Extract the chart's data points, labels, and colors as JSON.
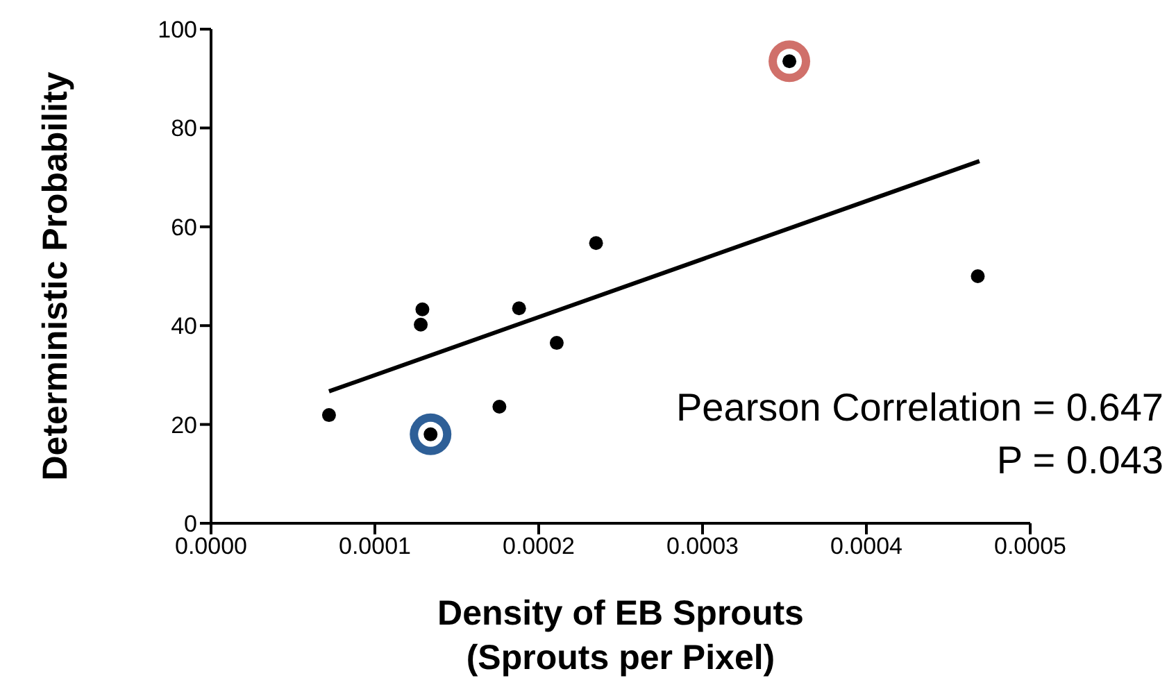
{
  "chart_data": {
    "type": "scatter",
    "xlabel": "Density of EB Sprouts\n(Sprouts per Pixel)",
    "ylabel": "Deterministic Probability",
    "xlim": [
      0,
      0.0005
    ],
    "xticks": [
      {
        "value": 0,
        "label": "0.0000"
      },
      {
        "value": 0.0001,
        "label": "0.0001"
      },
      {
        "value": 0.0002,
        "label": "0.0002"
      },
      {
        "value": 0.0003,
        "label": "0.0003"
      },
      {
        "value": 0.0004,
        "label": "0.0004"
      },
      {
        "value": 0.0005,
        "label": "0.0005"
      }
    ],
    "ylim": [
      0,
      100
    ],
    "yticks": [
      0,
      20,
      40,
      60,
      80,
      100
    ],
    "marker": "circle",
    "series": [
      {
        "color": "#2e5f97",
        "x": [
          0.000134
        ],
        "values": [
          18.0
        ]
      },
      {
        "color": "#d0706a",
        "x": [
          0.000353
        ],
        "values": [
          93.5
        ]
      },
      {
        "color": "#000000",
        "x": [
          7.2e-05,
          0.000129,
          0.000128,
          0.000134,
          0.000176,
          0.000188,
          0.000211,
          0.000235,
          0.000353,
          0.000468
        ],
        "values": [
          21.9,
          43.3,
          40.2,
          18.0,
          23.6,
          43.5,
          36.5,
          56.7,
          93.5,
          50.0
        ]
      },
      {
        "type": "line",
        "color": "#000000",
        "marker": "none",
        "x": [
          7.2e-05,
          0.000469
        ],
        "values": [
          26.7,
          73.3
        ]
      }
    ],
    "annotations": [
      "Pearson Correlation = 0.647",
      "P = 0.043"
    ]
  }
}
